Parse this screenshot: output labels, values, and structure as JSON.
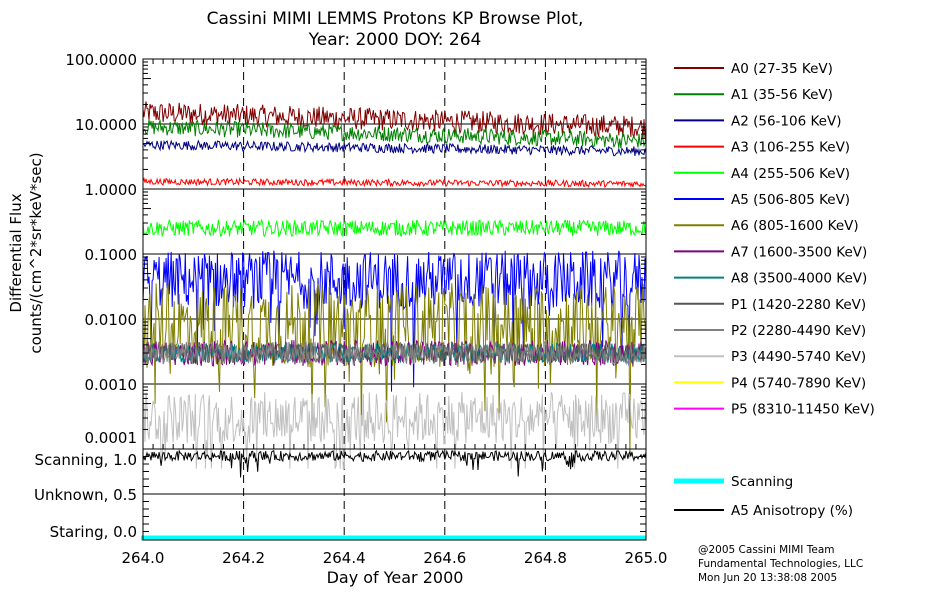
{
  "chart_data": {
    "type": "line",
    "title": "Cassini MIMI LEMMS Protons KP Browse Plot,",
    "subtitle": "Year: 2000 DOY: 264",
    "xlabel": "Day of Year 2000",
    "ylabel": "Differential Flux",
    "ylabel2": "counts/(cm^2*sr*keV*sec)",
    "xlim": [
      264.0,
      265.0
    ],
    "ylim": [
      0.0001,
      100
    ],
    "yscale": "log",
    "x_ticks": [
      "264.0",
      "264.2",
      "264.4",
      "264.6",
      "264.8",
      "265.0"
    ],
    "y_ticks": [
      "100.0000",
      "10.0000",
      "1.0000",
      "0.1000",
      "0.0100",
      "0.0010",
      "0.0001"
    ],
    "legend_position": "right",
    "series": [
      {
        "name": "A0 (27-35 KeV)",
        "color": "#800000",
        "start": 15,
        "end": 9,
        "noise": 0.35
      },
      {
        "name": "A1 (35-56 KeV)",
        "color": "#008000",
        "start": 9,
        "end": 5.5,
        "noise": 0.25
      },
      {
        "name": "A2 (56-106 KeV)",
        "color": "#000080",
        "start": 4.8,
        "end": 3.8,
        "noise": 0.15
      },
      {
        "name": "A3 (106-255 KeV)",
        "color": "#ff0000",
        "start": 1.3,
        "end": 1.2,
        "noise": 0.1
      },
      {
        "name": "A4 (255-506 KeV)",
        "color": "#00ff00",
        "start": 0.25,
        "end": 0.25,
        "noise": 0.25
      },
      {
        "name": "A5 (506-805 KeV)",
        "color": "#0000ff",
        "start": 0.04,
        "end": 0.04,
        "noise": 0.9
      },
      {
        "name": "A6 (805-1600 KeV)",
        "color": "#808000",
        "start": 0.008,
        "end": 0.008,
        "noise": 1.3
      },
      {
        "name": "A7 (1600-3500 KeV)",
        "color": "#800080",
        "start": 0.003,
        "end": 0.003,
        "noise": 0.4
      },
      {
        "name": "A8 (3500-4000 KeV)",
        "color": "#008080",
        "start": 0.003,
        "end": 0.003,
        "noise": 0.3
      },
      {
        "name": "P1 (1420-2280 KeV)",
        "color": "#555555",
        "start": 0.003,
        "end": 0.003,
        "noise": 0.3
      },
      {
        "name": "P2 (2280-4490 KeV)",
        "color": "#808080",
        "start": 0.003,
        "end": 0.003,
        "noise": 0.35
      },
      {
        "name": "P3 (4490-5740 KeV)",
        "color": "#c0c0c0",
        "start": 0.0003,
        "end": 0.0003,
        "noise": 0.8
      },
      {
        "name": "P4 (5740-7890 KeV)",
        "color": "#ffff00",
        "start": 0.0001,
        "end": 0.0001,
        "noise": 0.1
      },
      {
        "name": "P5 (8310-11450 KeV)",
        "color": "#ff00ff",
        "start": 0.0001,
        "end": 0.0001,
        "noise": 0.1
      }
    ],
    "lower_panel": {
      "ylim": [
        0,
        1
      ],
      "y_ticks": [
        "Scanning, 1.0",
        "Unknown, 0.5",
        "Staring, 0.0"
      ],
      "series": [
        {
          "name": "Scanning",
          "color": "#00ffff",
          "value": 0.0
        },
        {
          "name": "A5 Anisotropy (%)",
          "color": "#000000",
          "value": 0.93
        }
      ]
    }
  },
  "footer": {
    "line1": "@2005 Cassini MIMI Team",
    "line2": "Fundamental Technologies, LLC",
    "line3": "Mon Jun 20 13:38:08 2005"
  }
}
